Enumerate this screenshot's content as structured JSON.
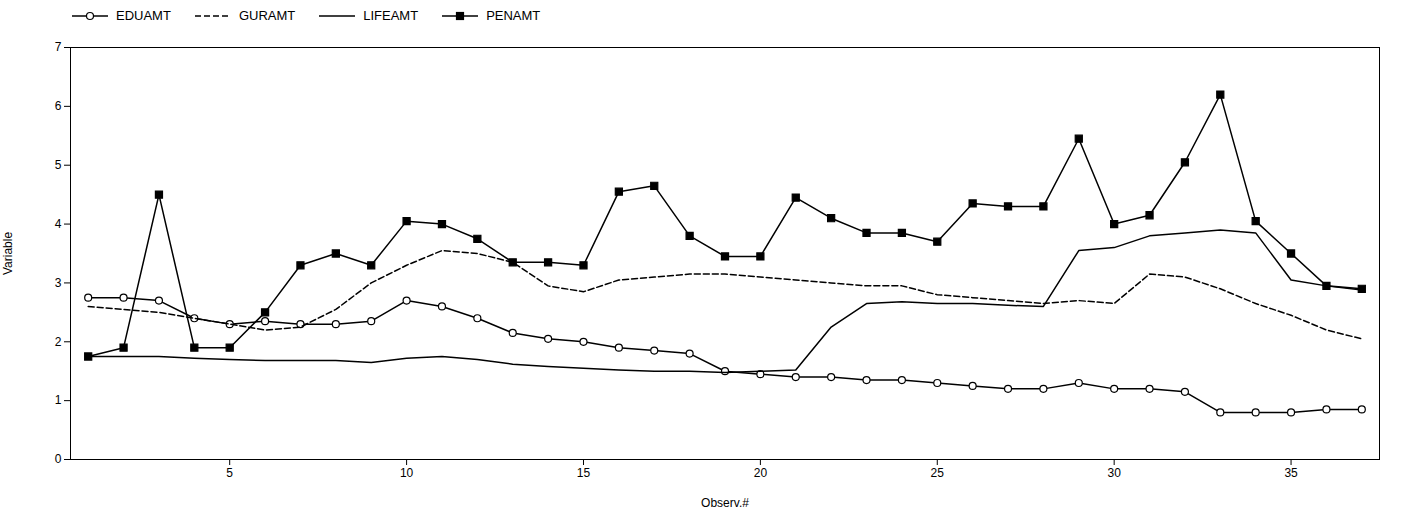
{
  "chart_data": {
    "type": "line",
    "xlabel": "Observ.#",
    "ylabel": "Variable",
    "x": [
      1,
      2,
      3,
      4,
      5,
      6,
      7,
      8,
      9,
      10,
      11,
      12,
      13,
      14,
      15,
      16,
      17,
      18,
      19,
      20,
      21,
      22,
      23,
      24,
      25,
      26,
      27,
      28,
      29,
      30,
      31,
      32,
      33,
      34,
      35,
      36,
      37
    ],
    "series": [
      {
        "name": "EDUAMT",
        "color": "#000000",
        "marker": "circle-open",
        "line_style": "solid",
        "values": [
          2.75,
          2.75,
          2.7,
          2.4,
          2.3,
          2.35,
          2.3,
          2.3,
          2.35,
          2.7,
          2.6,
          2.4,
          2.15,
          2.05,
          2.0,
          1.9,
          1.85,
          1.8,
          1.5,
          1.45,
          1.4,
          1.4,
          1.35,
          1.35,
          1.3,
          1.25,
          1.2,
          1.2,
          1.3,
          1.2,
          1.2,
          1.15,
          0.8,
          0.8,
          0.8,
          0.85,
          0.85
        ]
      },
      {
        "name": "GURAMT",
        "color": "#000000",
        "marker": "none",
        "line_style": "dashed",
        "values": [
          2.6,
          2.55,
          2.5,
          2.4,
          2.3,
          2.2,
          2.25,
          2.55,
          3.0,
          3.3,
          3.55,
          3.5,
          3.35,
          2.95,
          2.85,
          3.05,
          3.1,
          3.15,
          3.15,
          3.1,
          3.05,
          3.0,
          2.95,
          2.95,
          2.8,
          2.75,
          2.7,
          2.65,
          2.7,
          2.65,
          3.15,
          3.1,
          2.9,
          2.65,
          2.45,
          2.2,
          2.05
        ]
      },
      {
        "name": "LIFEAMT",
        "color": "#000000",
        "marker": "none",
        "line_style": "solid",
        "values": [
          1.75,
          1.75,
          1.75,
          1.72,
          1.7,
          1.68,
          1.68,
          1.68,
          1.65,
          1.72,
          1.75,
          1.7,
          1.62,
          1.58,
          1.55,
          1.52,
          1.5,
          1.5,
          1.48,
          1.5,
          1.52,
          2.25,
          2.65,
          2.68,
          2.65,
          2.65,
          2.62,
          2.6,
          3.55,
          3.6,
          3.8,
          3.85,
          3.9,
          3.85,
          3.05,
          2.95,
          2.88
        ]
      },
      {
        "name": "PENAMT",
        "color": "#000000",
        "marker": "square",
        "line_style": "solid",
        "values": [
          1.75,
          1.9,
          4.5,
          1.9,
          1.9,
          2.5,
          3.3,
          3.5,
          3.3,
          4.05,
          4.0,
          3.75,
          3.35,
          3.35,
          3.3,
          4.55,
          4.65,
          3.8,
          3.45,
          3.45,
          4.45,
          4.1,
          3.85,
          3.85,
          3.7,
          4.35,
          4.3,
          4.3,
          5.45,
          4.0,
          4.15,
          5.05,
          6.2,
          4.05,
          3.5,
          2.95,
          2.9
        ]
      }
    ],
    "xlim": [
      0.5,
      37.5
    ],
    "ylim": [
      0,
      7
    ],
    "xticks": [
      5,
      10,
      15,
      20,
      25,
      30,
      35
    ],
    "yticks": [
      0,
      1,
      2,
      3,
      4,
      5,
      6,
      7
    ],
    "grid": false,
    "legend": "upper left"
  }
}
